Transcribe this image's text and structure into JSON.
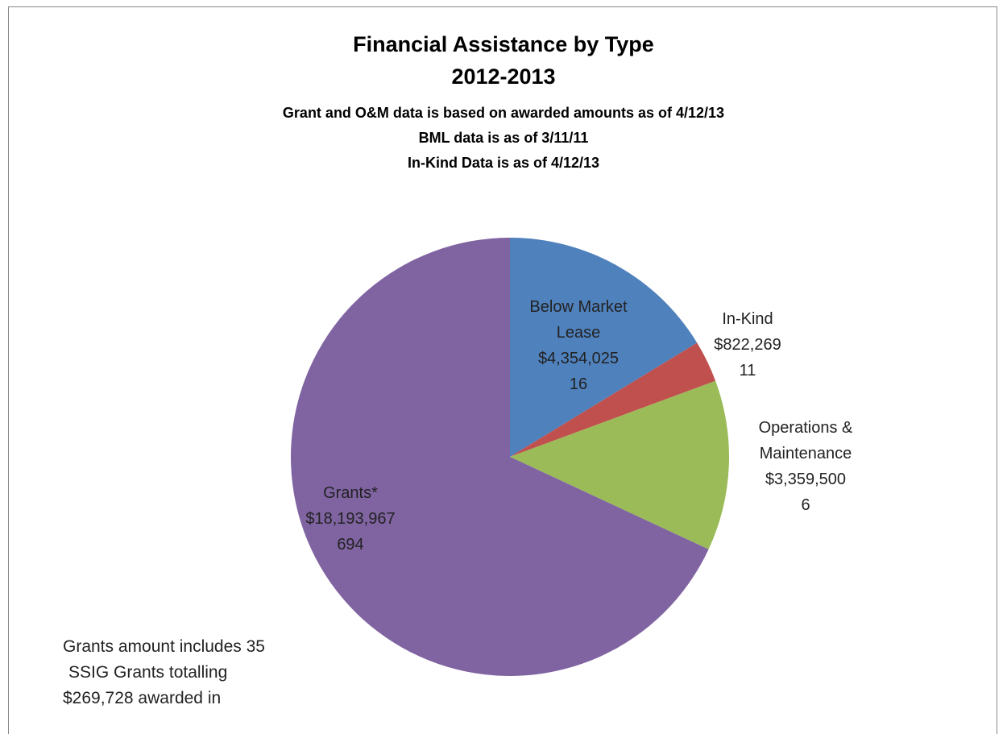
{
  "chart_data": {
    "type": "pie",
    "title": "Financial Assistance by Type",
    "subtitle": "2012-2013",
    "notes": [
      "Grant and O&M data is based on awarded amounts as of 4/12/13",
      "BML data is as of 3/11/11",
      "In-Kind Data is as of 4/12/13"
    ],
    "categories": [
      "Below Market Lease",
      "In-Kind",
      "Operations & Maintenance",
      "Grants*"
    ],
    "values": [
      4354025,
      822269,
      3359500,
      18193967
    ],
    "value_labels": [
      "$4,354,025",
      "$822,269",
      "$3,359,500",
      "$18,193,967"
    ],
    "counts": [
      16,
      11,
      6,
      694
    ],
    "colors": [
      "#4f81bd",
      "#c0504d",
      "#9bbb59",
      "#8064a2"
    ],
    "annotation": [
      "Grants amount includes 35",
      "SSIG Grants totalling",
      "$269,728  awarded in"
    ]
  }
}
